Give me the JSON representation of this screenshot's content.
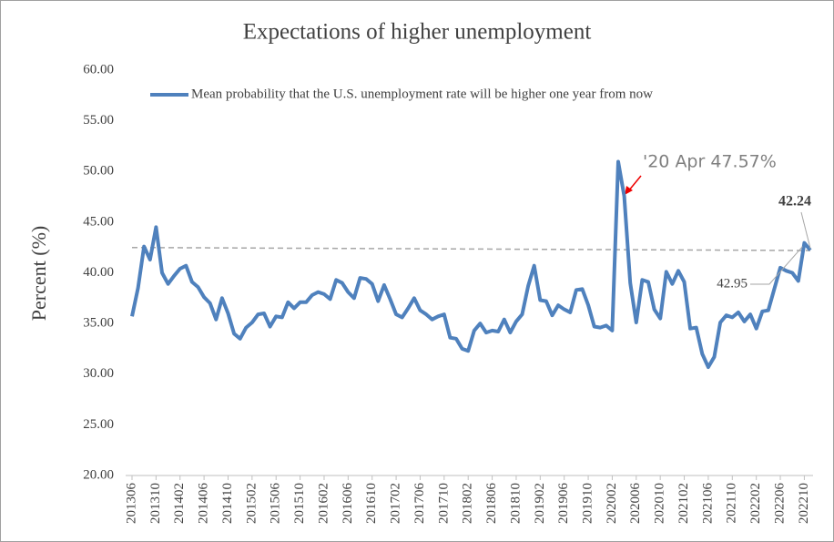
{
  "chart_data": {
    "type": "line",
    "title": "Expectations  of higher unemployment",
    "y_label": "Percent (%)",
    "categories": [
      "201306",
      null,
      null,
      null,
      "201310",
      null,
      null,
      null,
      "201402",
      null,
      null,
      null,
      "201406",
      null,
      null,
      null,
      "201410",
      null,
      null,
      null,
      "201502",
      null,
      null,
      null,
      "201506",
      null,
      null,
      null,
      "201510",
      null,
      null,
      null,
      "201602",
      null,
      null,
      null,
      "201606",
      null,
      null,
      null,
      "201610",
      null,
      null,
      null,
      "201702",
      null,
      null,
      null,
      "201706",
      null,
      null,
      null,
      "201710",
      null,
      null,
      null,
      "201802",
      null,
      null,
      null,
      "201806",
      null,
      null,
      null,
      "201810",
      null,
      null,
      null,
      "201902",
      null,
      null,
      null,
      "201906",
      null,
      null,
      null,
      "201910",
      null,
      null,
      null,
      "202002",
      null,
      null,
      null,
      "202006",
      null,
      null,
      null,
      "202010",
      null,
      null,
      null,
      "202102",
      null,
      null,
      null,
      "202106",
      null,
      null,
      null,
      "202110",
      null,
      null,
      null,
      "202202",
      null,
      null,
      null,
      "202206",
      null,
      null,
      null,
      "202210",
      null
    ],
    "series": [
      {
        "name": "Mean probability that the U.S. unemployment rate will be higher one year from now",
        "color": "#4f81bd",
        "values": [
          35.7,
          38.5,
          42.6,
          41.3,
          44.5,
          40.0,
          38.9,
          39.7,
          40.4,
          40.7,
          39.1,
          38.6,
          37.6,
          37.0,
          35.4,
          37.5,
          36.0,
          34.0,
          33.5,
          34.6,
          35.1,
          35.9,
          36.0,
          34.7,
          35.7,
          35.6,
          37.1,
          36.5,
          37.1,
          37.1,
          37.8,
          38.1,
          37.9,
          37.4,
          39.3,
          39.0,
          38.1,
          37.5,
          39.5,
          39.4,
          38.9,
          37.2,
          38.8,
          37.4,
          35.9,
          35.6,
          36.5,
          37.5,
          36.3,
          35.9,
          35.4,
          35.7,
          35.9,
          33.6,
          33.5,
          32.5,
          32.3,
          34.3,
          35.0,
          34.1,
          34.3,
          34.2,
          35.4,
          34.1,
          35.2,
          35.9,
          38.7,
          40.7,
          37.3,
          37.2,
          35.8,
          36.8,
          36.4,
          36.1,
          38.3,
          38.4,
          36.8,
          34.7,
          34.6,
          34.8,
          34.3,
          50.97,
          47.57,
          39.0,
          35.1,
          39.3,
          39.1,
          36.4,
          35.5,
          40.1,
          38.9,
          40.2,
          39.1,
          34.5,
          34.6,
          32.0,
          30.7,
          31.7,
          35.1,
          35.8,
          35.6,
          36.1,
          35.2,
          35.9,
          34.5,
          36.2,
          36.3,
          38.4,
          40.5,
          40.2,
          40.0,
          39.2,
          42.95,
          42.24
        ]
      }
    ],
    "trend_values": [
      42.5,
      42.2
    ],
    "trend_color": "#a6a6a6",
    "annotation": "'20 Apr 47.57%",
    "ylim": [
      20,
      60
    ],
    "yticks": [
      {
        "value": 20,
        "label": "20.00"
      },
      {
        "value": 25,
        "label": "25.00"
      },
      {
        "value": 30,
        "label": "30.00"
      },
      {
        "value": 35,
        "label": "35.00"
      },
      {
        "value": 40,
        "label": "40.00"
      },
      {
        "value": 45,
        "label": "45.00"
      },
      {
        "value": 50,
        "label": "50.00"
      },
      {
        "value": 55,
        "label": "55.00"
      },
      {
        "value": 60,
        "label": "60.00"
      }
    ],
    "grid": false,
    "legend": "top"
  }
}
